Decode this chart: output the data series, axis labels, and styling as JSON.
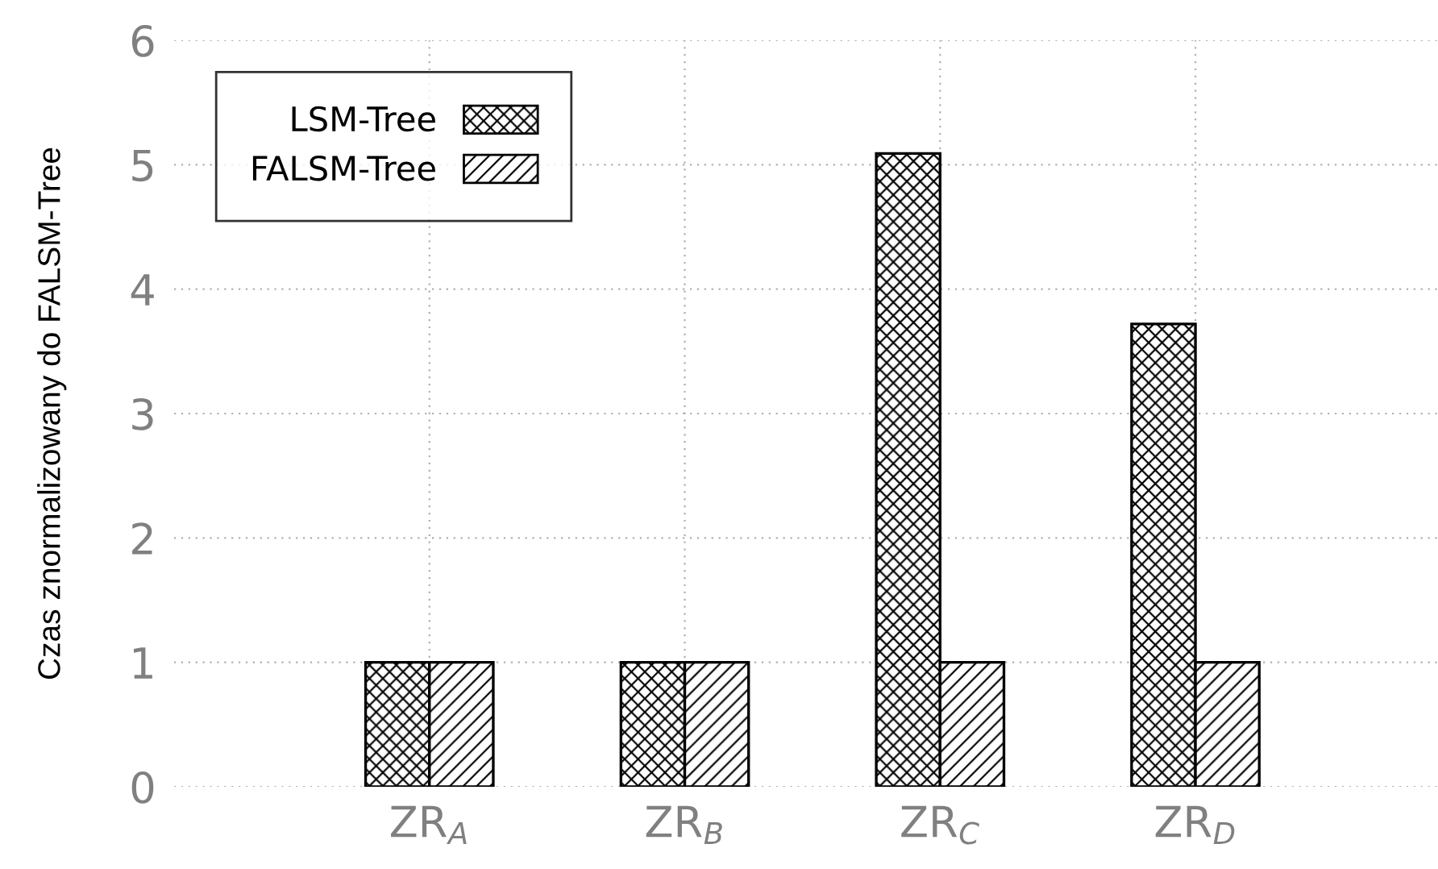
{
  "chart_data": {
    "type": "bar",
    "ylabel": "Czas znormalizowany do FALSM-Tree",
    "categories": [
      "ZR$_{A}$",
      "ZR$_{B}$",
      "ZR$_{C}$",
      "ZR$_{D}$"
    ],
    "series": [
      {
        "name": "LSM-Tree",
        "color": "#000000",
        "values": [
          1,
          1,
          5.09,
          3.72
        ]
      },
      {
        "name": "FALSM-Tree",
        "color": "#000000",
        "values": [
          1,
          1,
          1,
          1
        ]
      }
    ],
    "ylim": [
      0,
      6
    ],
    "yticks": [
      0,
      1,
      2,
      3,
      4,
      5,
      6
    ],
    "grid": true,
    "legend": "top left"
  }
}
